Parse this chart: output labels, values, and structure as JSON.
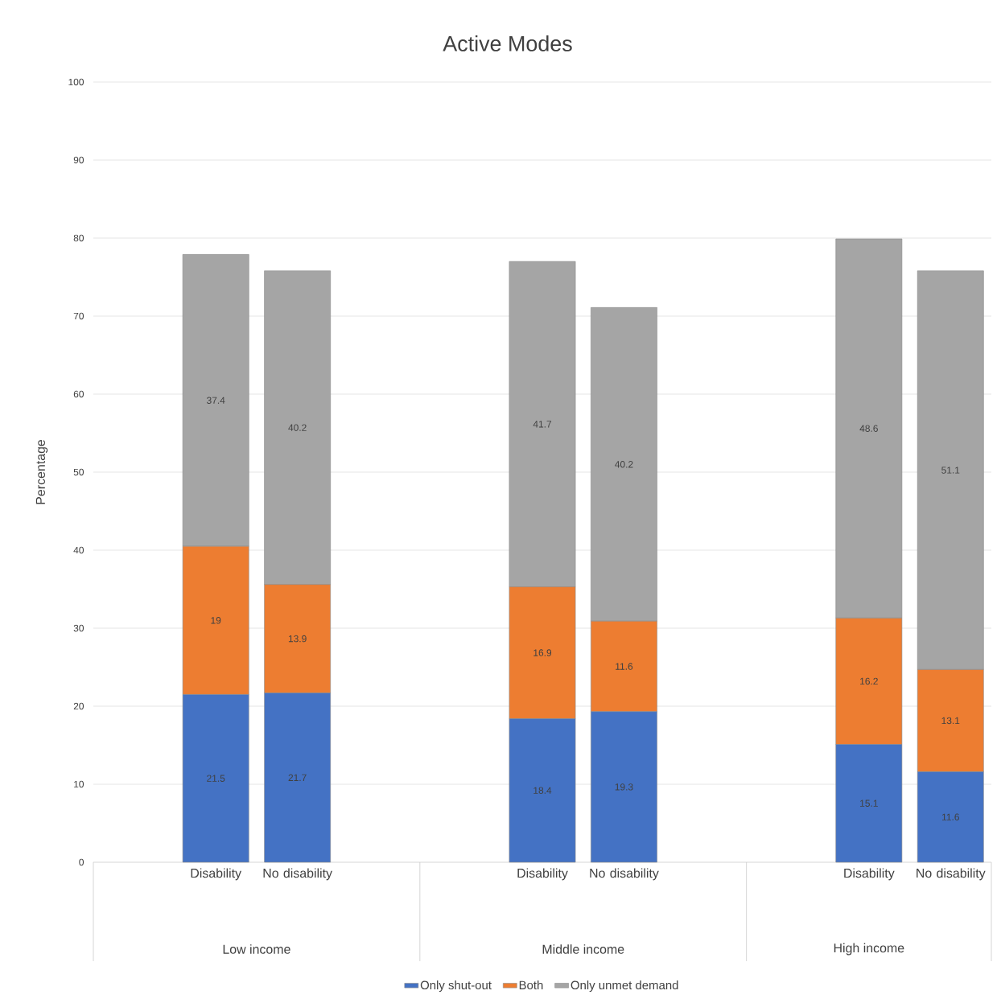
{
  "chart_data": {
    "type": "bar",
    "title": "Active Modes",
    "ylabel": "Percentage",
    "categories": [
      null,
      "Disability",
      "No disability",
      null,
      null,
      "Disability",
      "No disability",
      null,
      null,
      "Disability",
      "No disability"
    ],
    "series": [
      {
        "name": "Only shut-out",
        "color": "#4472c4",
        "values": [
          null,
          21.5,
          21.7,
          null,
          null,
          18.4,
          19.3,
          null,
          null,
          15.1,
          11.6
        ]
      },
      {
        "name": "Both",
        "color": "#ed7d31",
        "values": [
          null,
          19,
          13.9,
          null,
          null,
          16.9,
          11.6,
          null,
          null,
          16.2,
          13.1
        ]
      },
      {
        "name": "Only unmet demand",
        "color": "#a5a5a5",
        "values": [
          null,
          37.4,
          40.2,
          null,
          null,
          41.7,
          40.2,
          null,
          null,
          48.6,
          51.1
        ]
      }
    ],
    "annotations": [
      "Low income",
      "Middle income",
      "High income"
    ],
    "stacked": true,
    "data_labels": true,
    "grid": "y",
    "legend": "bottom",
    "ylim": [
      0,
      100
    ],
    "yticks": [
      0,
      10,
      20,
      30,
      40,
      50,
      60,
      70,
      80,
      90,
      100
    ]
  }
}
